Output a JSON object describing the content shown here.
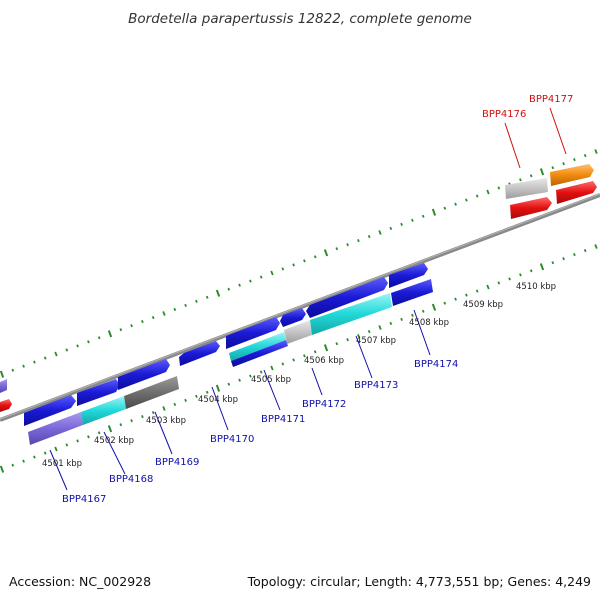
{
  "title": "Bordetella parapertussis 12822, complete genome",
  "footer": {
    "accession": "Accession: NC_002928",
    "summary": "Topology: circular; Length: 4,773,551 bp; Genes: 4,249"
  },
  "kbp_labels": [
    "4501 kbp",
    "4502 kbp",
    "4503 kbp",
    "4504 kbp",
    "4505 kbp",
    "4506 kbp",
    "4507 kbp",
    "4508 kbp",
    "4509 kbp",
    "4510 kbp"
  ],
  "gene_labels": {
    "bpp4167": "BPP4167",
    "bpp4168": "BPP4168",
    "bpp4169": "BPP4169",
    "bpp4170": "BPP4170",
    "bpp4171": "BPP4171",
    "bpp4172": "BPP4172",
    "bpp4173": "BPP4173",
    "bpp4174": "BPP4174",
    "bpp4176": "BPP4176",
    "bpp4177": "BPP4177"
  },
  "colors": {
    "backbone": "#8a8a8a",
    "tick": "#2e8b2e",
    "gene_blue": "#1a1ad6",
    "gene_cyan": "#21d8d8",
    "gene_purple": "#7b68d8",
    "gene_gray": "#6f6f6f",
    "gene_lightgray": "#c4c4c4",
    "gene_red": "#e31010",
    "gene_orange": "#f28a0c",
    "label_blue": "#1010aa",
    "label_red": "#d01010"
  }
}
